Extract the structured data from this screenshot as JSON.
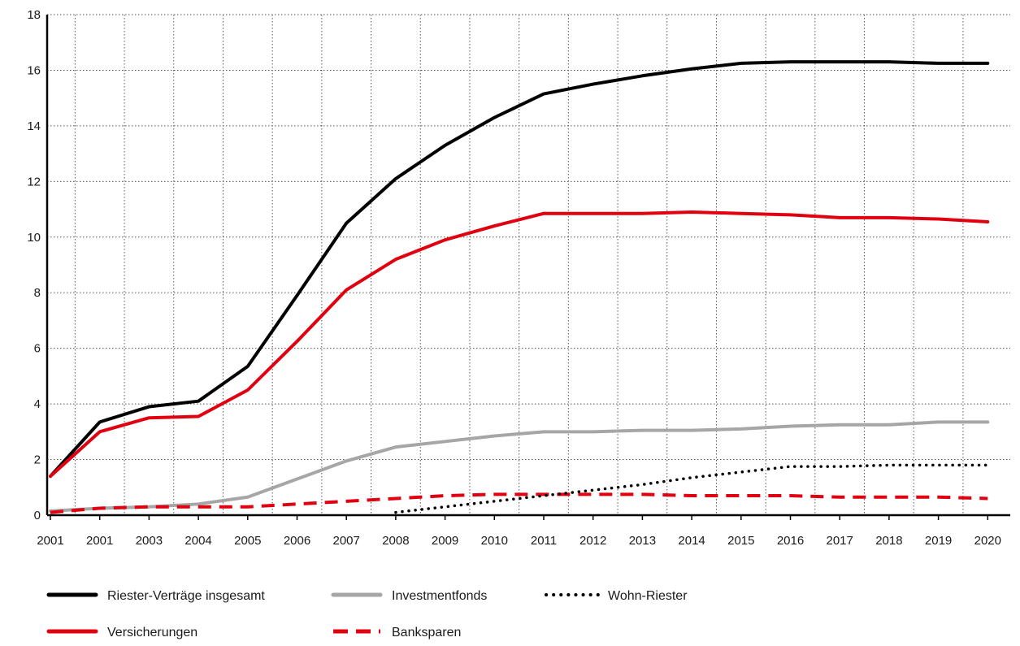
{
  "chart_data": {
    "type": "line",
    "title": "",
    "xlabel": "",
    "ylabel": "",
    "ylim": [
      0,
      18
    ],
    "yticks": [
      0,
      2,
      4,
      6,
      8,
      10,
      12,
      14,
      16,
      18
    ],
    "grid": true,
    "legend_position": "bottom",
    "categories": [
      "2001",
      "2001",
      "2003",
      "2004",
      "2005",
      "2006",
      "2007",
      "2008",
      "2009",
      "2010",
      "2011",
      "2012",
      "2013",
      "2014",
      "2015",
      "2016",
      "2017",
      "2018",
      "2019",
      "2020"
    ],
    "series": [
      {
        "name": "Riester-Verträge insgesamt",
        "color": "#000000",
        "style": "solid",
        "points": [
          [
            0,
            1.4
          ],
          [
            1,
            3.35
          ],
          [
            2,
            3.9
          ],
          [
            3,
            4.1
          ],
          [
            4,
            5.35
          ],
          [
            5,
            7.9
          ],
          [
            6,
            10.5
          ],
          [
            7,
            12.1
          ],
          [
            8,
            13.3
          ],
          [
            9,
            14.3
          ],
          [
            10,
            15.15
          ],
          [
            11,
            15.5
          ],
          [
            12,
            15.8
          ],
          [
            13,
            16.05
          ],
          [
            14,
            16.25
          ],
          [
            15,
            16.3
          ],
          [
            16,
            16.3
          ],
          [
            17,
            16.3
          ],
          [
            18,
            16.25
          ],
          [
            19,
            16.25
          ]
        ]
      },
      {
        "name": "Versicherungen",
        "color": "#e1000f",
        "style": "solid",
        "points": [
          [
            0,
            1.4
          ],
          [
            1,
            3.0
          ],
          [
            2,
            3.5
          ],
          [
            3,
            3.55
          ],
          [
            4,
            4.5
          ],
          [
            5,
            6.25
          ],
          [
            6,
            8.1
          ],
          [
            7,
            9.2
          ],
          [
            8,
            9.9
          ],
          [
            9,
            10.4
          ],
          [
            10,
            10.85
          ],
          [
            11,
            10.85
          ],
          [
            12,
            10.85
          ],
          [
            13,
            10.9
          ],
          [
            14,
            10.85
          ],
          [
            15,
            10.8
          ],
          [
            16,
            10.7
          ],
          [
            17,
            10.7
          ],
          [
            18,
            10.65
          ],
          [
            19,
            10.55
          ]
        ]
      },
      {
        "name": "Investmentfonds",
        "color": "#a6a6a6",
        "style": "solid",
        "points": [
          [
            0,
            0.15
          ],
          [
            1,
            0.25
          ],
          [
            2,
            0.3
          ],
          [
            3,
            0.4
          ],
          [
            4,
            0.65
          ],
          [
            5,
            1.3
          ],
          [
            6,
            1.95
          ],
          [
            7,
            2.45
          ],
          [
            8,
            2.65
          ],
          [
            9,
            2.85
          ],
          [
            10,
            3.0
          ],
          [
            11,
            3.0
          ],
          [
            12,
            3.05
          ],
          [
            13,
            3.05
          ],
          [
            14,
            3.1
          ],
          [
            15,
            3.2
          ],
          [
            16,
            3.25
          ],
          [
            17,
            3.25
          ],
          [
            18,
            3.35
          ],
          [
            19,
            3.35
          ]
        ]
      },
      {
        "name": "Banksparen",
        "color": "#e1000f",
        "style": "dashed",
        "points": [
          [
            0,
            0.1
          ],
          [
            1,
            0.25
          ],
          [
            2,
            0.3
          ],
          [
            3,
            0.3
          ],
          [
            4,
            0.3
          ],
          [
            5,
            0.4
          ],
          [
            6,
            0.5
          ],
          [
            7,
            0.6
          ],
          [
            8,
            0.7
          ],
          [
            9,
            0.75
          ],
          [
            10,
            0.75
          ],
          [
            11,
            0.75
          ],
          [
            12,
            0.75
          ],
          [
            13,
            0.7
          ],
          [
            14,
            0.7
          ],
          [
            15,
            0.7
          ],
          [
            16,
            0.65
          ],
          [
            17,
            0.65
          ],
          [
            18,
            0.65
          ],
          [
            19,
            0.6
          ]
        ]
      },
      {
        "name": "Wohn-Riester",
        "color": "#000000",
        "style": "dotted",
        "points": [
          [
            7,
            0.1
          ],
          [
            8,
            0.3
          ],
          [
            9,
            0.5
          ],
          [
            10,
            0.7
          ],
          [
            11,
            0.9
          ],
          [
            12,
            1.1
          ],
          [
            13,
            1.35
          ],
          [
            14,
            1.55
          ],
          [
            15,
            1.75
          ],
          [
            16,
            1.75
          ],
          [
            17,
            1.8
          ],
          [
            18,
            1.8
          ],
          [
            19,
            1.8
          ]
        ]
      }
    ]
  }
}
